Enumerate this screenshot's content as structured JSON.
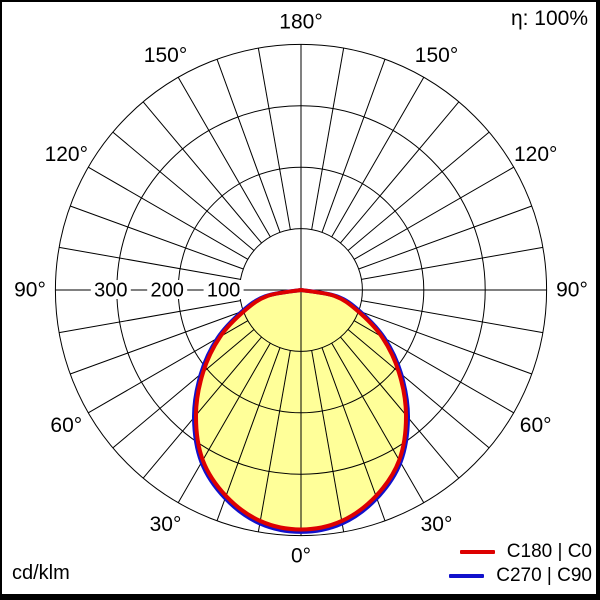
{
  "header": {
    "efficiency_label": "η: 100%"
  },
  "footer": {
    "unit_label": "cd/klm"
  },
  "chart_data": {
    "type": "polar",
    "subtype": "luminous-intensity-distribution",
    "unit": "cd/klm",
    "efficiency_percent": 100,
    "rlim": [
      0,
      400
    ],
    "ring_values": [
      100,
      200,
      300,
      400
    ],
    "ring_axis_labels": [
      "100",
      "200",
      "300"
    ],
    "angle_label_step_deg": 30,
    "angle_grid_step_deg": 10,
    "angle_labels": [
      "0°",
      "30°",
      "60°",
      "90°",
      "120°",
      "150°",
      "180°"
    ],
    "grid_color": "#000000",
    "background_color": "#ffffff",
    "fill_color": "#ffff99",
    "legend_position": "bottom-right",
    "series": [
      {
        "name": "C180 | C0",
        "color": "#dd0000",
        "angles_deg": [
          0,
          10,
          20,
          30,
          40,
          50,
          60,
          70,
          80,
          90
        ],
        "values_cd_per_klm": [
          390,
          382,
          357,
          320,
          266,
          208,
          152,
          97,
          55,
          0
        ]
      },
      {
        "name": "C270 | C90",
        "color": "#1111cc",
        "angles_deg": [
          0,
          10,
          20,
          30,
          40,
          50,
          60,
          70,
          80,
          90
        ],
        "values_cd_per_klm": [
          394,
          386,
          361,
          324,
          271,
          213,
          157,
          102,
          59,
          0
        ]
      }
    ]
  }
}
